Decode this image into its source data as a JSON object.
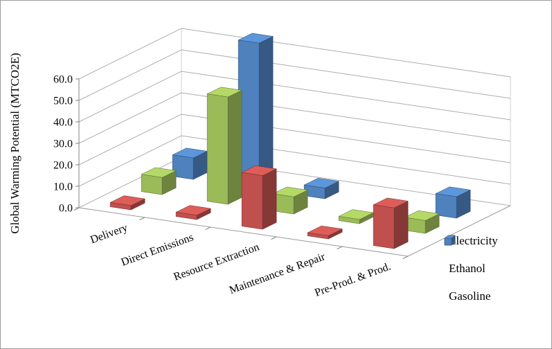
{
  "figure": {
    "background": "#FFFFFF",
    "border_color": "#9C9C9C",
    "gridline_color": "#ADADAD",
    "axis_color": "#808080"
  },
  "chart_data": {
    "type": "bar",
    "subtype": "3d-column",
    "title": "",
    "xlabel": "",
    "ylabel": "Global Warming Potential (MTCO2E)",
    "ylim": [
      0,
      60
    ],
    "grid": true,
    "legend_position": "right-bottom",
    "yticks": [
      0,
      10,
      20,
      30,
      40,
      50,
      60
    ],
    "ytick_labels": [
      "0.0",
      "10.0",
      "20.0",
      "30.0",
      "40.0",
      "50.0",
      "60.0"
    ],
    "categories": [
      "Delivery",
      "Direct Emissions",
      "Resource Extraction",
      "Maintenance & Repair",
      "Pre-Prod. & Prod."
    ],
    "series": [
      {
        "name": "Electricity",
        "color": "#C0504D",
        "values": [
          2,
          2,
          25,
          1.5,
          19
        ]
      },
      {
        "name": "Ethanol",
        "color": "#9BBB59",
        "values": [
          8,
          50,
          8,
          2,
          6
        ]
      },
      {
        "name": "Gasoline",
        "color": "#4F81BD",
        "values": [
          10,
          68,
          5,
          0,
          10
        ]
      }
    ]
  }
}
